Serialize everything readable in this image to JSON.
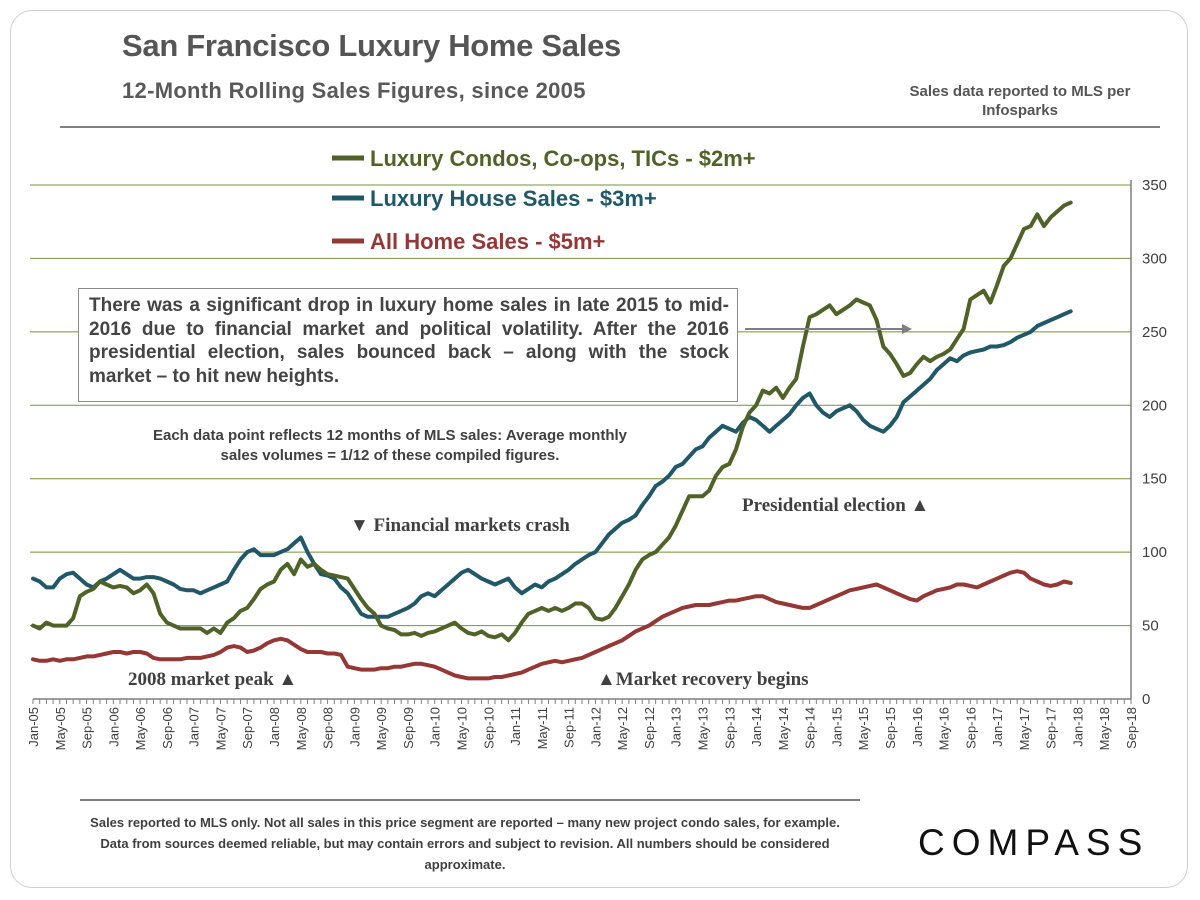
{
  "header": {
    "title": "San Francisco Luxury Home Sales",
    "subtitle": "12-Month Rolling Sales Figures, since 2005",
    "source_note": "Sales data reported to MLS per Infosparks"
  },
  "callout": "There was a significant drop in luxury home sales in late 2015 to mid-2016 due to financial market and political volatility. After the 2016 presidential election, sales bounced back – along with the stock market – to hit new heights.",
  "data_note": "Each data point reflects 12 months of MLS sales: Average monthly sales volumes = 1/12 of these compiled figures.",
  "annotations": {
    "crash": "▼ Financial markets crash",
    "peak": "2008 market peak ▲",
    "election": "Presidential election ▲",
    "recovery": "▲Market recovery begins"
  },
  "footer": "Sales reported to MLS only. Not all sales in this price segment are reported – many new project condo sales, for example. Data from sources deemed reliable, but may contain errors and subject to revision. All numbers should be considered approximate.",
  "brand": "COMPASS",
  "chart_data": {
    "type": "line",
    "title": "San Francisco Luxury Home Sales",
    "subtitle": "12-Month Rolling Sales Figures, since 2005",
    "ylim": [
      0,
      350
    ],
    "yticks": [
      0,
      50,
      100,
      150,
      200,
      250,
      300,
      350
    ],
    "y_axis_side": "right",
    "grid": true,
    "legend_position": "top-left",
    "x_tick_labels": [
      "Jan-05",
      "May-05",
      "Sep-05",
      "Jan-06",
      "May-06",
      "Sep-06",
      "Jan-07",
      "May-07",
      "Sep-07",
      "Jan-08",
      "May-08",
      "Sep-08",
      "Jan-09",
      "May-09",
      "Sep-09",
      "Jan-10",
      "May-10",
      "Sep-10",
      "Jan-11",
      "May-11",
      "Sep-11",
      "Jan-12",
      "May-12",
      "Sep-12",
      "Jan-13",
      "May-13",
      "Sep-13",
      "Jan-14",
      "May-14",
      "Sep-14",
      "Jan-15",
      "May-15",
      "Sep-15",
      "Jan-16",
      "May-16",
      "Sep-16",
      "Jan-17",
      "May-17",
      "Sep-17",
      "Jan-18",
      "May-18",
      "Sep-18"
    ],
    "series": [
      {
        "name": "Luxury Condos, Co-ops, TICs - $2m+",
        "color": "#4f6228",
        "values": [
          50,
          48,
          52,
          50,
          50,
          50,
          55,
          70,
          73,
          75,
          80,
          78,
          76,
          77,
          76,
          72,
          74,
          78,
          72,
          58,
          52,
          50,
          48,
          48,
          48,
          48,
          45,
          48,
          45,
          52,
          55,
          60,
          62,
          68,
          75,
          78,
          80,
          88,
          92,
          85,
          95,
          90,
          92,
          88,
          85,
          84,
          83,
          82,
          75,
          68,
          62,
          58,
          50,
          48,
          47,
          44,
          44,
          45,
          43,
          45,
          46,
          48,
          50,
          52,
          48,
          45,
          44,
          46,
          43,
          42,
          44,
          40,
          45,
          52,
          58,
          60,
          62,
          60,
          62,
          60,
          62,
          65,
          65,
          62,
          55,
          54,
          56,
          62,
          70,
          78,
          88,
          95,
          98,
          100,
          105,
          110,
          118,
          128,
          138,
          138,
          138,
          142,
          152,
          158,
          160,
          170,
          185,
          195,
          200,
          210,
          208,
          212,
          205,
          212,
          218,
          240,
          260,
          262,
          265,
          268,
          262,
          265,
          268,
          272,
          270,
          268,
          258,
          240,
          235,
          228,
          220,
          222,
          228,
          233,
          230,
          233,
          235,
          238,
          245,
          252,
          272,
          275,
          278,
          270,
          282,
          295,
          300,
          310,
          320,
          322,
          330,
          322,
          328,
          332,
          336,
          338
        ]
      },
      {
        "name": "Luxury House Sales - $3m+",
        "color": "#215868",
        "values": [
          82,
          80,
          76,
          76,
          82,
          85,
          86,
          82,
          78,
          76,
          80,
          82,
          85,
          88,
          85,
          82,
          82,
          83,
          83,
          82,
          80,
          78,
          75,
          74,
          74,
          72,
          74,
          76,
          78,
          80,
          88,
          95,
          100,
          102,
          98,
          98,
          98,
          100,
          102,
          106,
          110,
          100,
          92,
          85,
          84,
          82,
          76,
          72,
          65,
          58,
          56,
          56,
          56,
          56,
          58,
          60,
          62,
          65,
          70,
          72,
          70,
          74,
          78,
          82,
          86,
          88,
          85,
          82,
          80,
          78,
          80,
          82,
          76,
          72,
          75,
          78,
          76,
          80,
          82,
          85,
          88,
          92,
          95,
          98,
          100,
          106,
          112,
          116,
          120,
          122,
          125,
          132,
          138,
          145,
          148,
          152,
          158,
          160,
          165,
          170,
          172,
          178,
          182,
          186,
          184,
          182,
          188,
          192,
          190,
          186,
          182,
          186,
          190,
          194,
          200,
          205,
          208,
          200,
          195,
          192,
          196,
          198,
          200,
          196,
          190,
          186,
          184,
          182,
          186,
          192,
          202,
          206,
          210,
          214,
          218,
          224,
          228,
          232,
          230,
          234,
          236,
          237,
          238,
          240,
          240,
          241,
          243,
          246,
          248,
          250,
          254,
          256,
          258,
          260,
          262,
          264
        ]
      },
      {
        "name": "All Home Sales - $5m+",
        "color": "#953735",
        "values": [
          27,
          26,
          26,
          27,
          26,
          27,
          27,
          28,
          29,
          29,
          30,
          31,
          32,
          32,
          31,
          32,
          32,
          31,
          28,
          27,
          27,
          27,
          27,
          28,
          28,
          28,
          29,
          30,
          32,
          35,
          36,
          35,
          32,
          33,
          35,
          38,
          40,
          41,
          40,
          37,
          34,
          32,
          32,
          32,
          31,
          31,
          30,
          22,
          21,
          20,
          20,
          20,
          21,
          21,
          22,
          22,
          23,
          24,
          24,
          23,
          22,
          20,
          18,
          16,
          15,
          14,
          14,
          14,
          14,
          15,
          15,
          16,
          17,
          18,
          20,
          22,
          24,
          25,
          26,
          25,
          26,
          27,
          28,
          30,
          32,
          34,
          36,
          38,
          40,
          43,
          46,
          48,
          50,
          53,
          56,
          58,
          60,
          62,
          63,
          64,
          64,
          64,
          65,
          66,
          67,
          67,
          68,
          69,
          70,
          70,
          68,
          66,
          65,
          64,
          63,
          62,
          62,
          64,
          66,
          68,
          70,
          72,
          74,
          75,
          76,
          77,
          78,
          76,
          74,
          72,
          70,
          68,
          67,
          70,
          72,
          74,
          75,
          76,
          78,
          78,
          77,
          76,
          78,
          80,
          82,
          84,
          86,
          87,
          86,
          82,
          80,
          78,
          77,
          78,
          80,
          79
        ]
      }
    ]
  }
}
